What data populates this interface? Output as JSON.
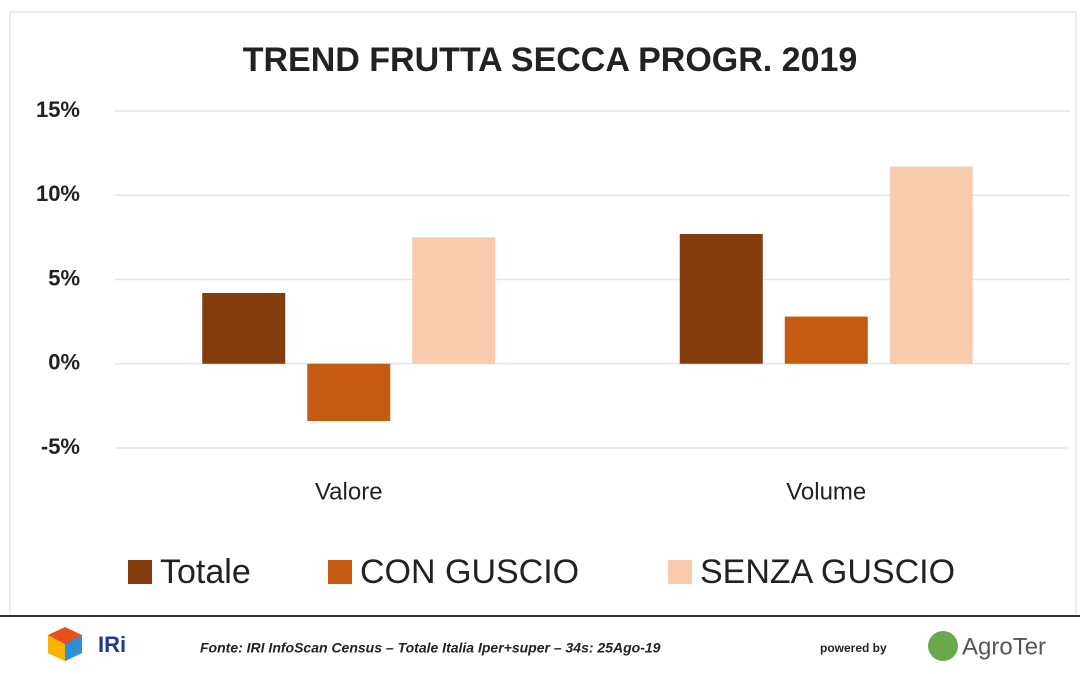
{
  "chart_data": {
    "type": "bar",
    "title": "TREND FRUTTA SECCA PROGR. 2019",
    "categories": [
      "Valore",
      "Volume"
    ],
    "series": [
      {
        "name": "Totale",
        "color": "#843c0c",
        "values": [
          4.2,
          7.7
        ]
      },
      {
        "name": "CON GUSCIO",
        "color": "#c55a11",
        "values": [
          -3.4,
          2.8
        ]
      },
      {
        "name": "SENZA GUSCIO",
        "color": "#f8cbad",
        "values": [
          7.5,
          11.7
        ]
      }
    ],
    "ylim": [
      -5,
      15
    ],
    "yticks": [
      {
        "value": -5,
        "label": "-5%"
      },
      {
        "value": 0,
        "label": "0%"
      },
      {
        "value": 5,
        "label": "5%"
      },
      {
        "value": 10,
        "label": "10%"
      },
      {
        "value": 15,
        "label": "15%"
      }
    ],
    "grid": true,
    "legend": "bottom"
  },
  "footer": {
    "logo_left": "IRi",
    "source": "Fonte: IRI InfoScan Census – Totale Italia Iper+super – 34s: 25Ago-19",
    "powered": "powered by",
    "logo_right": "AgroTer"
  }
}
